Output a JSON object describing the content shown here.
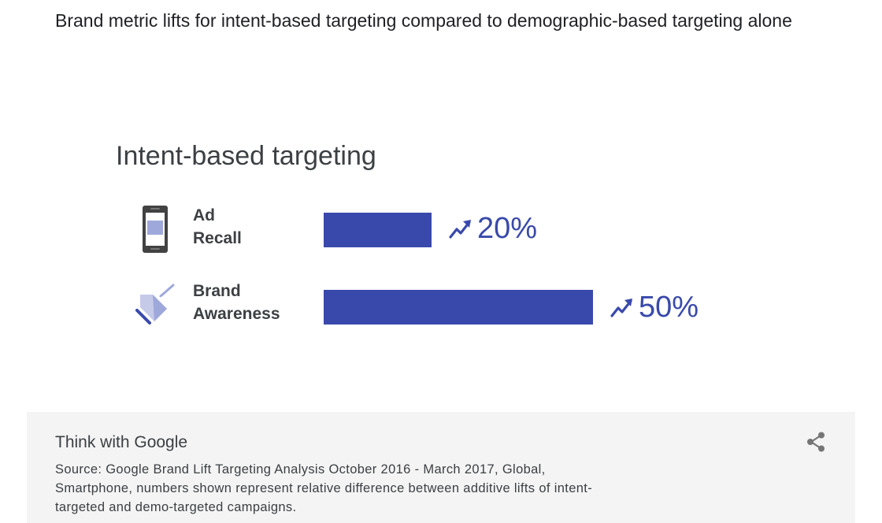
{
  "page_title": "Brand metric lifts for intent-based targeting compared to demographic-based targeting alone",
  "chart_data": {
    "type": "bar",
    "orientation": "horizontal",
    "title": "Intent-based targeting",
    "categories": [
      "Ad Recall",
      "Brand Awareness"
    ],
    "category_lines": [
      [
        "Ad",
        "Recall"
      ],
      [
        "Brand",
        "Awareness"
      ]
    ],
    "category_icons": [
      "smartphone-icon",
      "price-tag-icon"
    ],
    "values": [
      20,
      50
    ],
    "value_labels": [
      "20%",
      "50%"
    ],
    "value_icon": "trending-up-icon",
    "unit": "%",
    "grid": false,
    "legend": "none",
    "bar_color": "#3949ab"
  },
  "footer": {
    "brand": "Think with Google",
    "source": "Source: Google Brand Lift Targeting Analysis October 2016 - March 2017, Global, Smartphone, numbers shown represent relative difference between additive lifts of intent-targeted and demo-targeted campaigns.",
    "share_icon": "share-icon"
  },
  "colors": {
    "accent": "#3949ab",
    "icon_light": "#9fa8da",
    "footer_bg": "#f4f4f4",
    "text": "#202124",
    "muted": "#3c4043"
  }
}
